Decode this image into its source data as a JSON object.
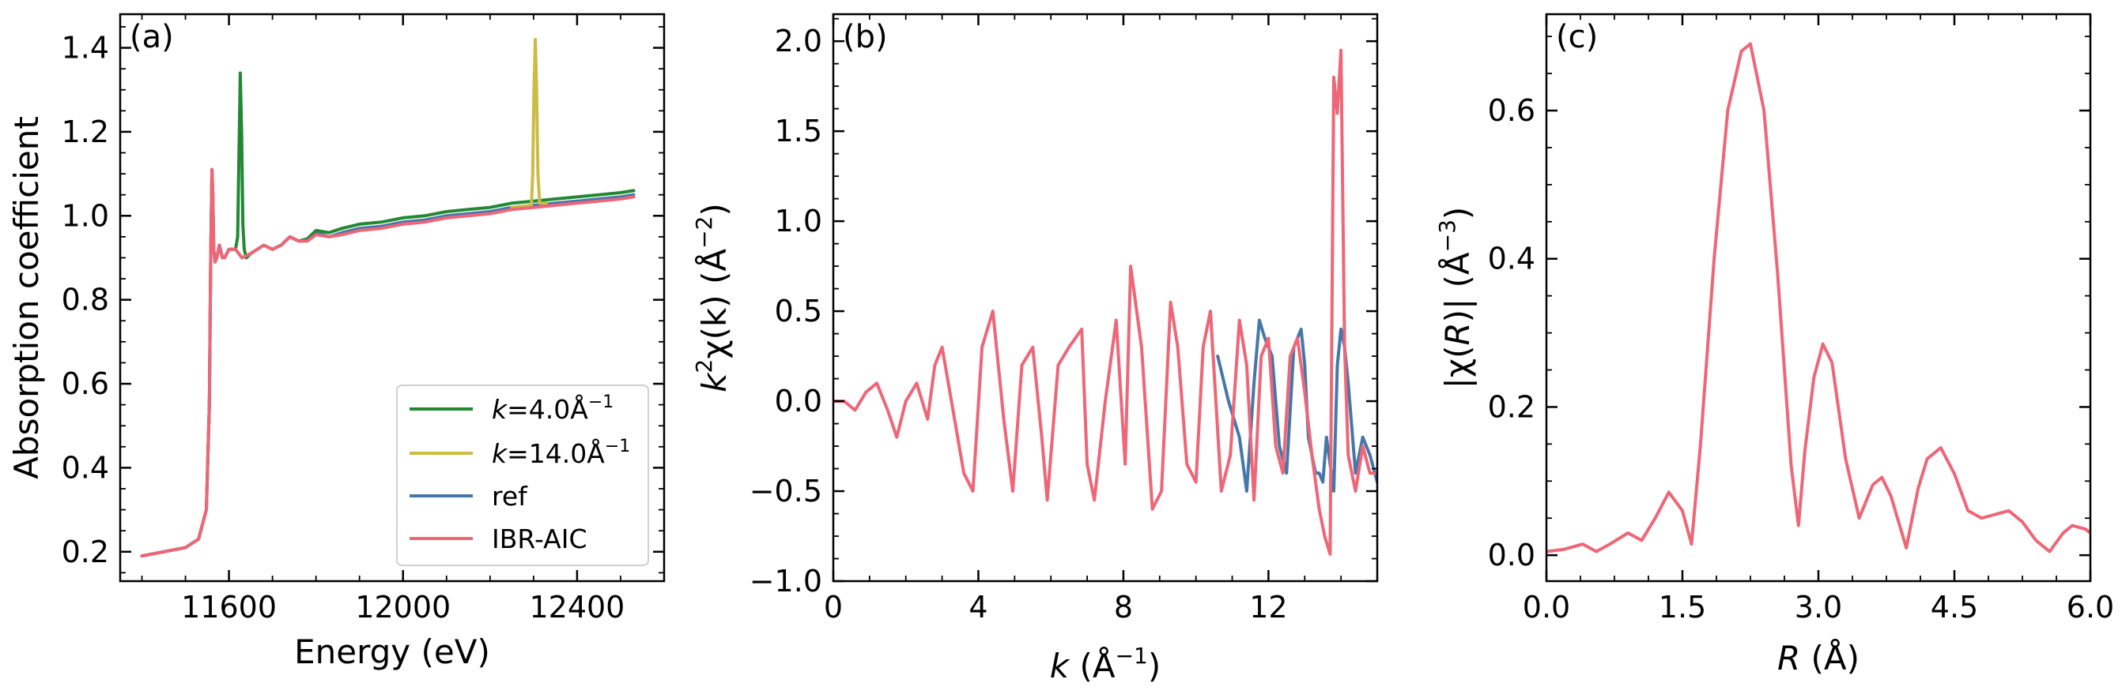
{
  "chart_data": [
    {
      "type": "line",
      "panel_label": "(a)",
      "xlabel": "Energy (eV)",
      "ylabel": "Absorption coefficient",
      "xlim": [
        11350,
        12600
      ],
      "ylim": [
        0.13,
        1.48
      ],
      "xticks": [
        11600,
        12000,
        12400
      ],
      "yticks": [
        0.2,
        0.4,
        0.6,
        0.8,
        1.0,
        1.2,
        1.4
      ],
      "xtick_labels": [
        "11600",
        "12000",
        "12400"
      ],
      "ytick_labels": [
        "0.2",
        "0.4",
        "0.6",
        "0.8",
        "1.0",
        "1.2",
        "1.4"
      ],
      "grid": false,
      "legend": {
        "position": "bottom-right",
        "entries": [
          {
            "label_prefix": "k",
            "label_rest": "=4.0Å",
            "label_sup": "−1",
            "color": "#228833"
          },
          {
            "label_prefix": "k",
            "label_rest": "=14.0Å",
            "label_sup": "−1",
            "color": "#CCBB44"
          },
          {
            "label_prefix": "",
            "label_rest": "ref",
            "label_sup": "",
            "color": "#4477AA"
          },
          {
            "label_prefix": "",
            "label_rest": "IBR-AIC",
            "label_sup": "",
            "color": "#EE6677"
          }
        ]
      },
      "series": [
        {
          "name": "ref",
          "color": "#4477AA",
          "x": [
            11400,
            11450,
            11500,
            11530,
            11548,
            11555,
            11558,
            11561,
            11563,
            11565,
            11568,
            11572,
            11578,
            11585,
            11590,
            11600,
            11615,
            11630,
            11650,
            11680,
            11700,
            11720,
            11740,
            11760,
            11780,
            11800,
            11830,
            11860,
            11900,
            11950,
            12000,
            12050,
            12100,
            12150,
            12200,
            12250,
            12300,
            12350,
            12400,
            12450,
            12500,
            12530
          ],
          "y": [
            0.19,
            0.2,
            0.21,
            0.23,
            0.3,
            0.55,
            0.9,
            1.11,
            1.05,
            0.92,
            0.89,
            0.9,
            0.93,
            0.9,
            0.9,
            0.92,
            0.92,
            0.9,
            0.91,
            0.93,
            0.92,
            0.93,
            0.95,
            0.94,
            0.94,
            0.96,
            0.95,
            0.96,
            0.97,
            0.975,
            0.985,
            0.99,
            1.0,
            1.005,
            1.01,
            1.02,
            1.025,
            1.03,
            1.035,
            1.04,
            1.045,
            1.05
          ]
        },
        {
          "name": "k=4.0Å−1",
          "color": "#228833",
          "x": [
            11400,
            11450,
            11500,
            11530,
            11548,
            11555,
            11558,
            11561,
            11563,
            11565,
            11568,
            11572,
            11578,
            11585,
            11590,
            11600,
            11615,
            11620,
            11623,
            11626,
            11629,
            11632,
            11635,
            11640,
            11650,
            11680,
            11700,
            11720,
            11740,
            11760,
            11780,
            11800,
            11830,
            11860,
            11900,
            11950,
            12000,
            12050,
            12100,
            12150,
            12200,
            12250,
            12300,
            12350,
            12400,
            12450,
            12500,
            12530
          ],
          "y": [
            0.19,
            0.2,
            0.21,
            0.23,
            0.3,
            0.55,
            0.9,
            1.11,
            1.05,
            0.92,
            0.89,
            0.9,
            0.93,
            0.9,
            0.9,
            0.92,
            0.92,
            0.95,
            1.15,
            1.34,
            1.2,
            0.98,
            0.92,
            0.9,
            0.91,
            0.93,
            0.92,
            0.93,
            0.95,
            0.94,
            0.945,
            0.965,
            0.96,
            0.97,
            0.98,
            0.985,
            0.995,
            1.0,
            1.01,
            1.015,
            1.02,
            1.03,
            1.035,
            1.04,
            1.045,
            1.05,
            1.055,
            1.06
          ]
        },
        {
          "name": "k=14.0Å−1",
          "color": "#CCBB44",
          "x": [
            12250,
            12295,
            12298,
            12301,
            12304,
            12307,
            12310,
            12314,
            12330
          ],
          "y": [
            1.02,
            1.025,
            1.1,
            1.3,
            1.42,
            1.3,
            1.1,
            1.03,
            1.03
          ]
        },
        {
          "name": "IBR-AIC",
          "color": "#EE6677",
          "x": [
            11400,
            11450,
            11500,
            11530,
            11548,
            11555,
            11558,
            11561,
            11563,
            11565,
            11568,
            11572,
            11578,
            11585,
            11590,
            11600,
            11615,
            11630,
            11650,
            11680,
            11700,
            11720,
            11740,
            11760,
            11780,
            11800,
            11830,
            11860,
            11900,
            11950,
            12000,
            12050,
            12100,
            12150,
            12200,
            12250,
            12300,
            12350,
            12400,
            12450,
            12500,
            12530
          ],
          "y": [
            0.19,
            0.2,
            0.21,
            0.23,
            0.3,
            0.55,
            0.9,
            1.11,
            1.05,
            0.92,
            0.89,
            0.9,
            0.93,
            0.9,
            0.9,
            0.92,
            0.92,
            0.9,
            0.91,
            0.93,
            0.92,
            0.93,
            0.95,
            0.94,
            0.94,
            0.955,
            0.95,
            0.955,
            0.965,
            0.97,
            0.98,
            0.985,
            0.995,
            1.0,
            1.005,
            1.015,
            1.02,
            1.025,
            1.03,
            1.035,
            1.04,
            1.045
          ]
        }
      ]
    },
    {
      "type": "line",
      "panel_label": "(b)",
      "xlabel_italic": "k",
      "xlabel_rest": " (Å",
      "xlabel_sup": "−1",
      "xlabel_close": ")",
      "ylabel_italic": "k",
      "ylabel_sup1": "2",
      "ylabel_rest": "χ(k) (Å",
      "ylabel_sup2": "−2",
      "ylabel_close": ")",
      "xlim": [
        0,
        15
      ],
      "ylim": [
        -1.0,
        2.15
      ],
      "xticks": [
        0,
        4,
        8,
        12
      ],
      "yticks": [
        -1.0,
        -0.5,
        0.0,
        0.5,
        1.0,
        1.5,
        2.0
      ],
      "xtick_labels": [
        "0",
        "4",
        "8",
        "12"
      ],
      "ytick_labels": [
        "−1.0",
        "−0.5",
        "0.0",
        "0.5",
        "1.0",
        "1.5",
        "2.0"
      ],
      "grid": false,
      "series": [
        {
          "name": "ref",
          "color": "#4477AA",
          "x": [
            10.6,
            10.9,
            11.2,
            11.4,
            11.6,
            11.75,
            11.9,
            12.1,
            12.3,
            12.5,
            12.7,
            12.9,
            13.0,
            13.1,
            13.2,
            13.3,
            13.4,
            13.5,
            13.6,
            13.7,
            13.8,
            13.9,
            14.0,
            14.1,
            14.2,
            14.4,
            14.6,
            14.8,
            15.0
          ],
          "y": [
            0.25,
            0.0,
            -0.2,
            -0.5,
            0.1,
            0.45,
            0.35,
            0.25,
            -0.25,
            -0.4,
            0.3,
            0.4,
            0.2,
            -0.2,
            -0.3,
            -0.4,
            -0.4,
            -0.45,
            -0.2,
            -0.35,
            -0.5,
            0.2,
            0.4,
            0.3,
            0.1,
            -0.4,
            -0.2,
            -0.3,
            -0.45
          ]
        },
        {
          "name": "IBR-AIC",
          "color": "#EE6677",
          "x": [
            0,
            0.3,
            0.6,
            0.9,
            1.2,
            1.5,
            1.75,
            2.0,
            2.3,
            2.6,
            2.8,
            3.0,
            3.3,
            3.6,
            3.85,
            4.1,
            4.4,
            4.7,
            4.95,
            5.2,
            5.5,
            5.75,
            5.9,
            6.2,
            6.5,
            6.85,
            7.0,
            7.2,
            7.5,
            7.8,
            8.05,
            8.2,
            8.5,
            8.8,
            9.05,
            9.3,
            9.5,
            9.75,
            10.0,
            10.2,
            10.4,
            10.7,
            10.95,
            11.2,
            11.4,
            11.6,
            11.8,
            12.0,
            12.2,
            12.4,
            12.6,
            12.8,
            13.0,
            13.2,
            13.4,
            13.55,
            13.7,
            13.8,
            13.9,
            14.0,
            14.1,
            14.2,
            14.4,
            14.6,
            14.8,
            15.0
          ],
          "y": [
            0.0,
            0.0,
            -0.05,
            0.05,
            0.1,
            -0.05,
            -0.2,
            0.0,
            0.1,
            -0.1,
            0.2,
            0.3,
            -0.05,
            -0.4,
            -0.5,
            0.3,
            0.5,
            -0.1,
            -0.5,
            0.2,
            0.3,
            -0.2,
            -0.55,
            0.2,
            0.3,
            0.4,
            -0.35,
            -0.55,
            0.0,
            0.45,
            -0.35,
            0.75,
            0.3,
            -0.6,
            -0.5,
            0.55,
            0.3,
            -0.35,
            -0.45,
            0.3,
            0.5,
            -0.5,
            -0.3,
            0.45,
            0.2,
            -0.55,
            0.25,
            0.35,
            -0.25,
            -0.4,
            0.25,
            0.35,
            0.05,
            -0.3,
            -0.6,
            -0.75,
            -0.85,
            1.8,
            1.6,
            1.95,
            0.3,
            -0.3,
            -0.5,
            -0.25,
            -0.4,
            -0.4
          ]
        }
      ]
    },
    {
      "type": "line",
      "panel_label": "(c)",
      "xlabel_italic": "R",
      "xlabel_rest": " (Å)",
      "ylabel_pre": "|χ(",
      "ylabel_italic": "R",
      "ylabel_rest": ")| (Å",
      "ylabel_sup": "−3",
      "ylabel_close": ")",
      "xlim": [
        0.0,
        6.0
      ],
      "ylim": [
        -0.035,
        0.73
      ],
      "xticks": [
        0.0,
        1.5,
        3.0,
        4.5,
        6.0
      ],
      "yticks": [
        0.0,
        0.2,
        0.4,
        0.6
      ],
      "xtick_labels": [
        "0.0",
        "1.5",
        "3.0",
        "4.5",
        "6.0"
      ],
      "ytick_labels": [
        "0.0",
        "0.2",
        "0.4",
        "0.6"
      ],
      "grid": false,
      "series": [
        {
          "name": "IBR-AIC",
          "color": "#EE6677",
          "x": [
            0.0,
            0.2,
            0.4,
            0.55,
            0.7,
            0.9,
            1.05,
            1.2,
            1.35,
            1.5,
            1.6,
            1.7,
            1.85,
            2.0,
            2.15,
            2.25,
            2.4,
            2.55,
            2.7,
            2.78,
            2.85,
            2.95,
            3.05,
            3.15,
            3.3,
            3.45,
            3.6,
            3.7,
            3.8,
            3.97,
            4.1,
            4.2,
            4.35,
            4.5,
            4.65,
            4.8,
            4.95,
            5.1,
            5.25,
            5.4,
            5.55,
            5.7,
            5.8,
            5.95,
            6.0
          ],
          "y": [
            0.005,
            0.008,
            0.015,
            0.005,
            0.015,
            0.03,
            0.02,
            0.05,
            0.085,
            0.06,
            0.015,
            0.15,
            0.4,
            0.6,
            0.68,
            0.69,
            0.6,
            0.38,
            0.12,
            0.04,
            0.14,
            0.24,
            0.285,
            0.26,
            0.13,
            0.05,
            0.095,
            0.105,
            0.08,
            0.01,
            0.09,
            0.13,
            0.145,
            0.11,
            0.06,
            0.05,
            0.055,
            0.06,
            0.045,
            0.02,
            0.005,
            0.03,
            0.04,
            0.035,
            0.03
          ]
        }
      ]
    }
  ]
}
